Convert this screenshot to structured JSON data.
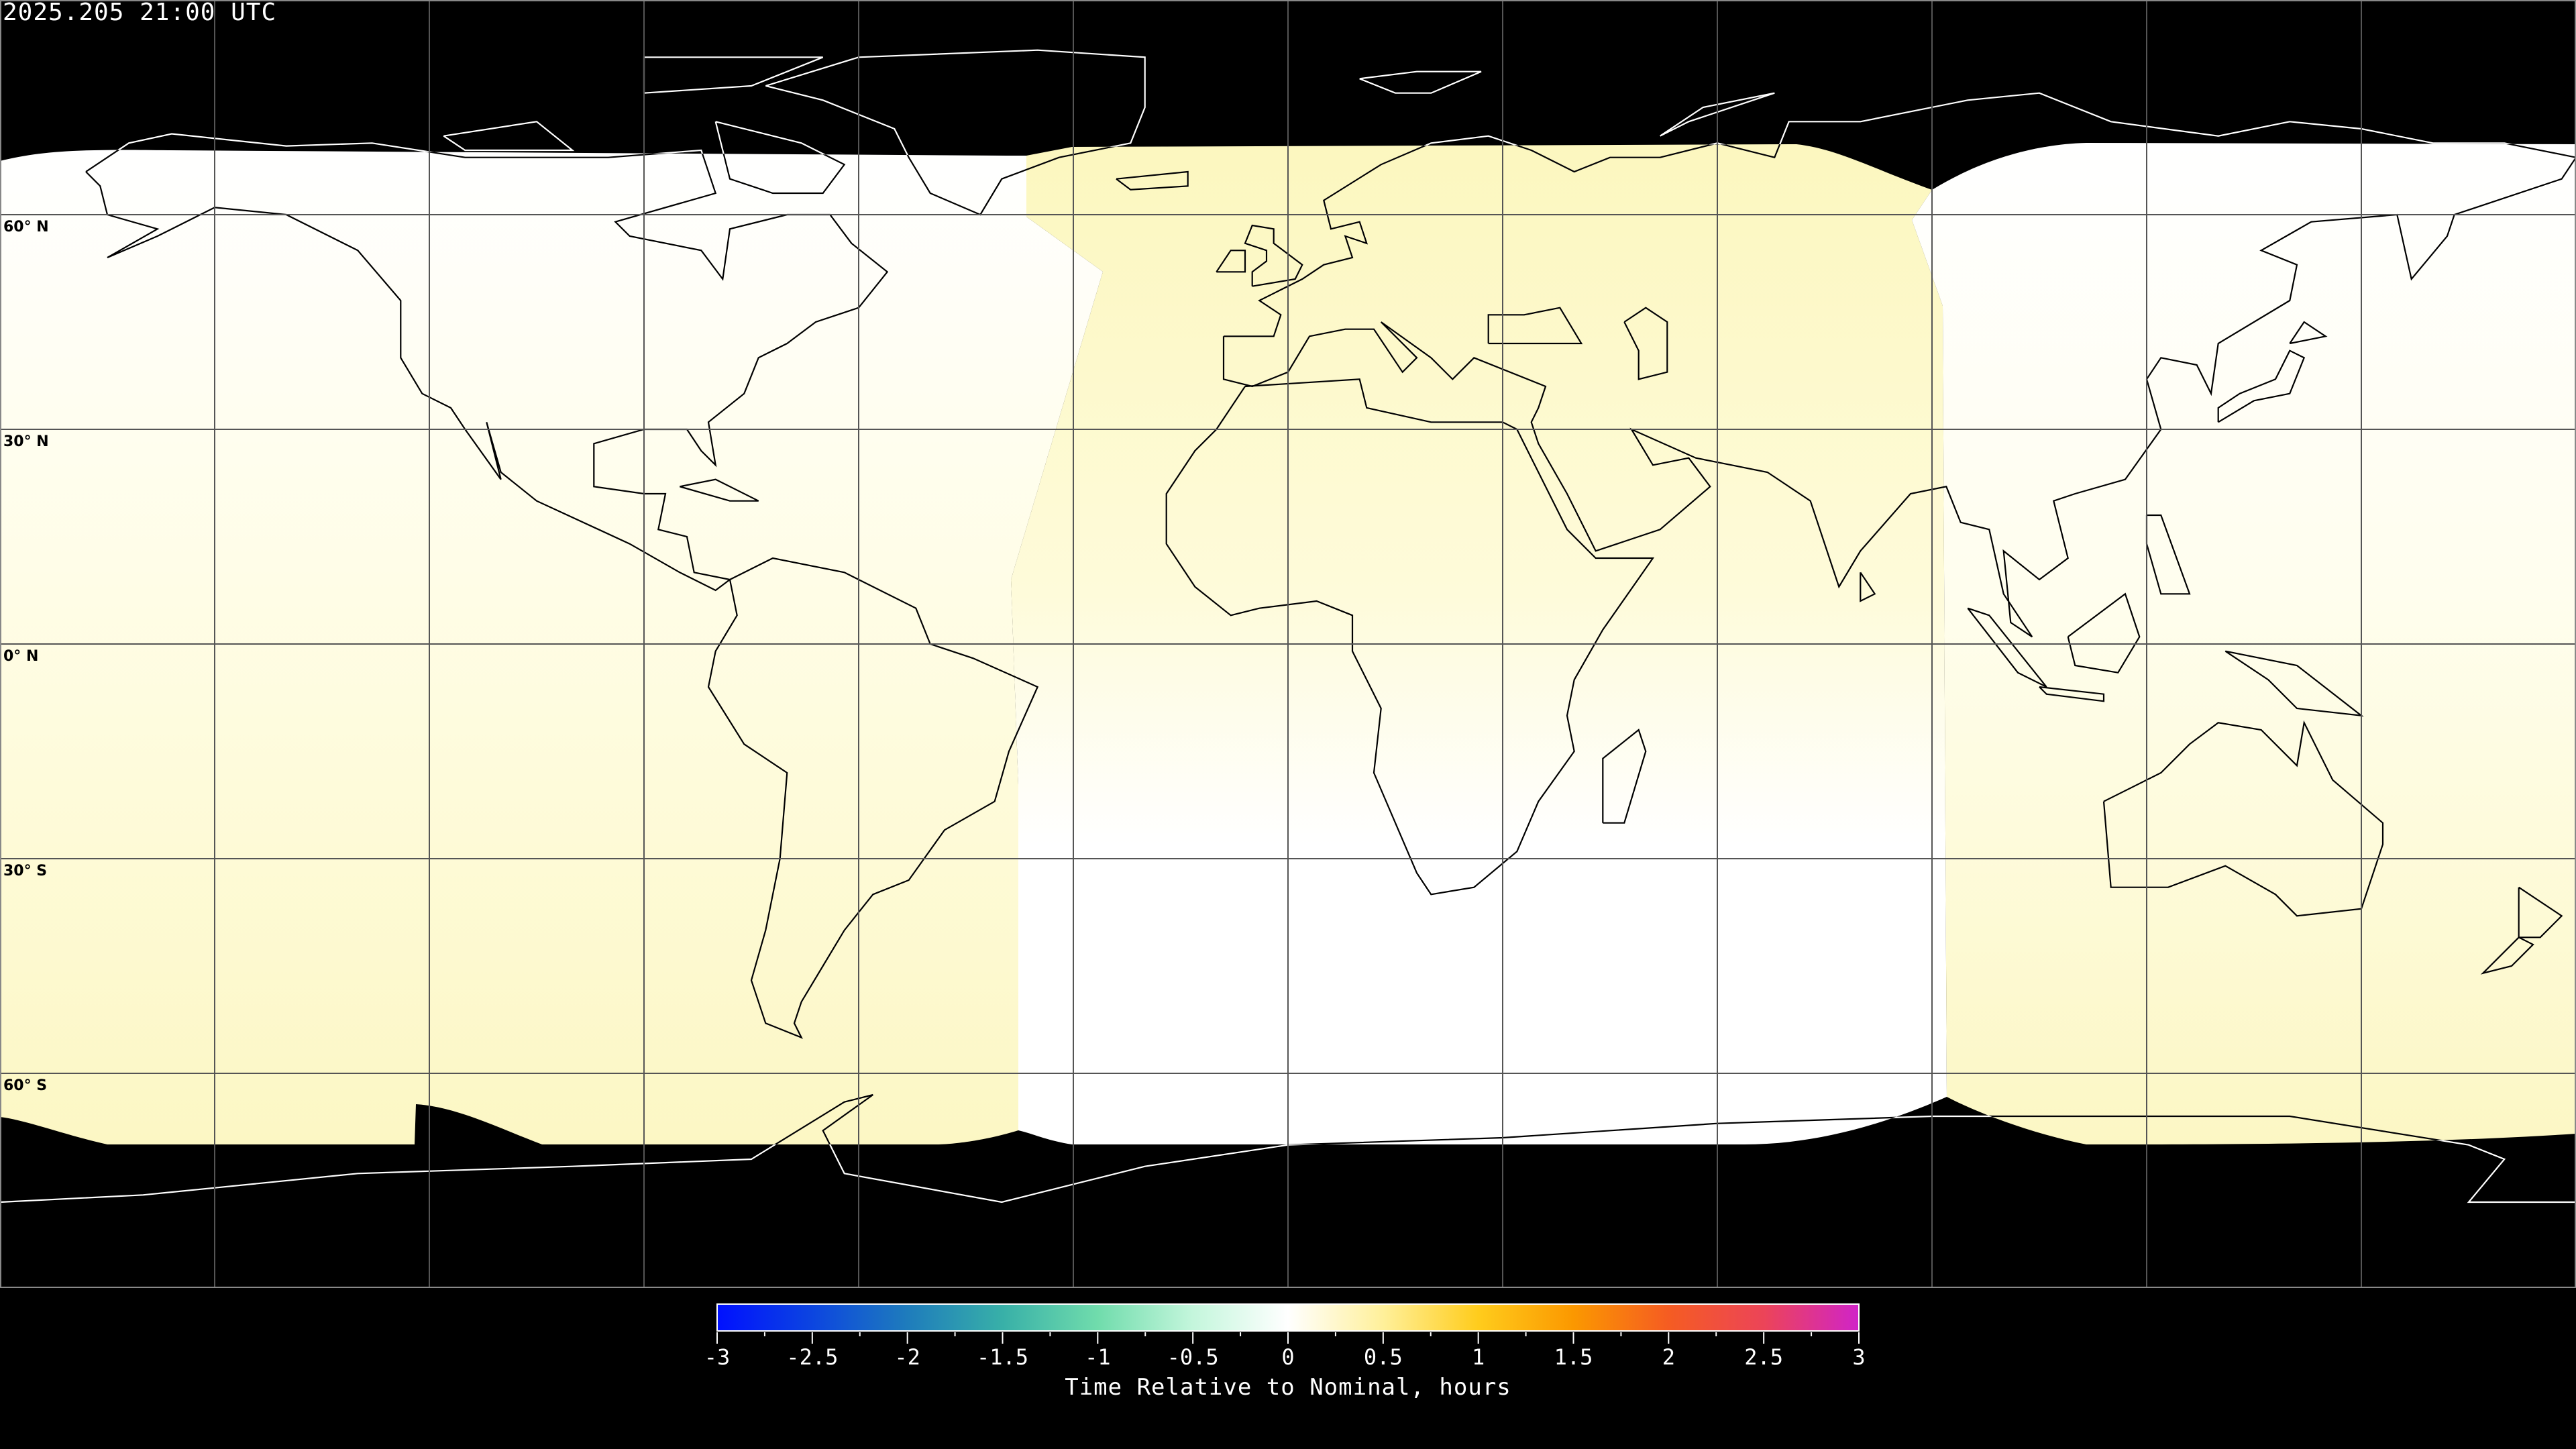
{
  "title": "2025.205 21:00 UTC",
  "lat_labels": [
    {
      "text": "60° N",
      "lat": 60
    },
    {
      "text": "30° N",
      "lat": 30
    },
    {
      "text": "0° N",
      "lat": 0
    },
    {
      "text": "30° S",
      "lat": -30
    },
    {
      "text": "60° S",
      "lat": -60
    }
  ],
  "grid": {
    "lon_step_deg": 30,
    "lat_step_deg": 30,
    "projection": "equirectangular",
    "colors": {
      "night": "#000000",
      "line": "#000000"
    }
  },
  "shading_colors": {
    "white": "#ffffff",
    "pale_yellow": "#fdf8c2"
  },
  "colorbar": {
    "label": "Time Relative to Nominal, hours",
    "range": [
      -3,
      3
    ],
    "ticks": [
      {
        "value": -3,
        "label": "-3"
      },
      {
        "value": -2.5,
        "label": "-2.5"
      },
      {
        "value": -2,
        "label": "-2"
      },
      {
        "value": -1.5,
        "label": "-1.5"
      },
      {
        "value": -1,
        "label": "-1"
      },
      {
        "value": -0.5,
        "label": "-0.5"
      },
      {
        "value": 0,
        "label": "0"
      },
      {
        "value": 0.5,
        "label": "0.5"
      },
      {
        "value": 1,
        "label": "1"
      },
      {
        "value": 1.5,
        "label": "1.5"
      },
      {
        "value": 2,
        "label": "2"
      },
      {
        "value": 2.5,
        "label": "2.5"
      },
      {
        "value": 3,
        "label": "3"
      }
    ],
    "stops": [
      {
        "value": -3,
        "color": "#0010ff"
      },
      {
        "value": -2.5,
        "color": "#0c45e0"
      },
      {
        "value": -2,
        "color": "#1e7cbc"
      },
      {
        "value": -1.5,
        "color": "#38b0a8"
      },
      {
        "value": -1,
        "color": "#70dcac"
      },
      {
        "value": -0.5,
        "color": "#c4f6dc"
      },
      {
        "value": 0,
        "color": "#ffffff"
      },
      {
        "value": 0.5,
        "color": "#fff09a"
      },
      {
        "value": 1,
        "color": "#ffcc1c"
      },
      {
        "value": 1.5,
        "color": "#fb9800"
      },
      {
        "value": 2,
        "color": "#f55c22"
      },
      {
        "value": 2.5,
        "color": "#ec4458"
      },
      {
        "value": 3,
        "color": "#d024c8"
      }
    ]
  }
}
